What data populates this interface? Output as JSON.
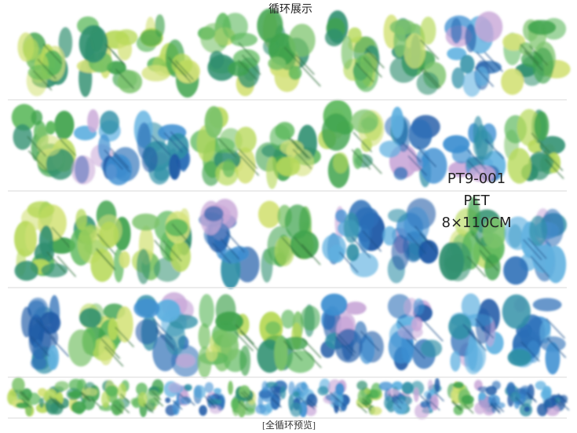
{
  "header": {
    "title": "循环展示"
  },
  "product": {
    "code": "PT9-001",
    "material": "PET",
    "size": "8×110CM"
  },
  "footer": {
    "caption": "[全循环预览]"
  }
}
